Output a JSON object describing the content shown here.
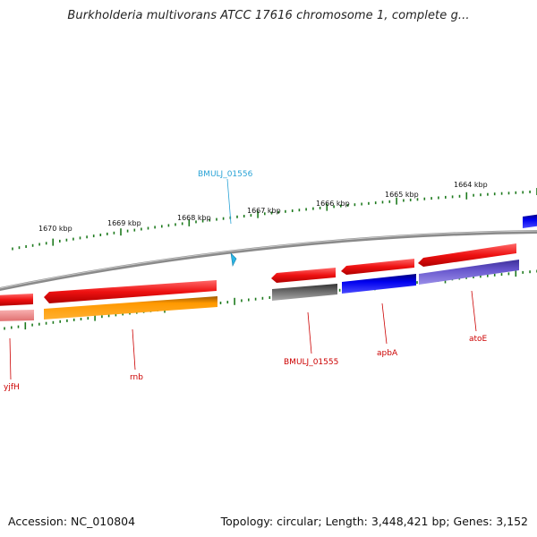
{
  "title": "Burkholderia multivorans ATCC 17616 chromosome 1, complete g...",
  "footer": {
    "accession": "Accession: NC_010804",
    "stats": "Topology: circular; Length: 3,448,421 bp; Genes: 3,152"
  },
  "ticks": [
    "1670 kbp",
    "1669 kbp",
    "1668 kbp",
    "1667 kbp",
    "1666 kbp",
    "1665 kbp",
    "1664 kbp"
  ],
  "highlight": {
    "label": "BMULJ_01556",
    "color": "#29a3d6"
  },
  "genes": [
    "yjfH",
    "rnb",
    "BMULJ_01555",
    "apbA",
    "atoE"
  ],
  "colors": {
    "cds_red": "#ee1111",
    "cds_pink": "#f08a8a",
    "cds_orange": "#ff9900",
    "cds_gray": "#666666",
    "cds_blue": "#0000ee",
    "cds_slate": "#6655cc",
    "tick_green": "#1d7a1d",
    "backbone": "#888888"
  }
}
